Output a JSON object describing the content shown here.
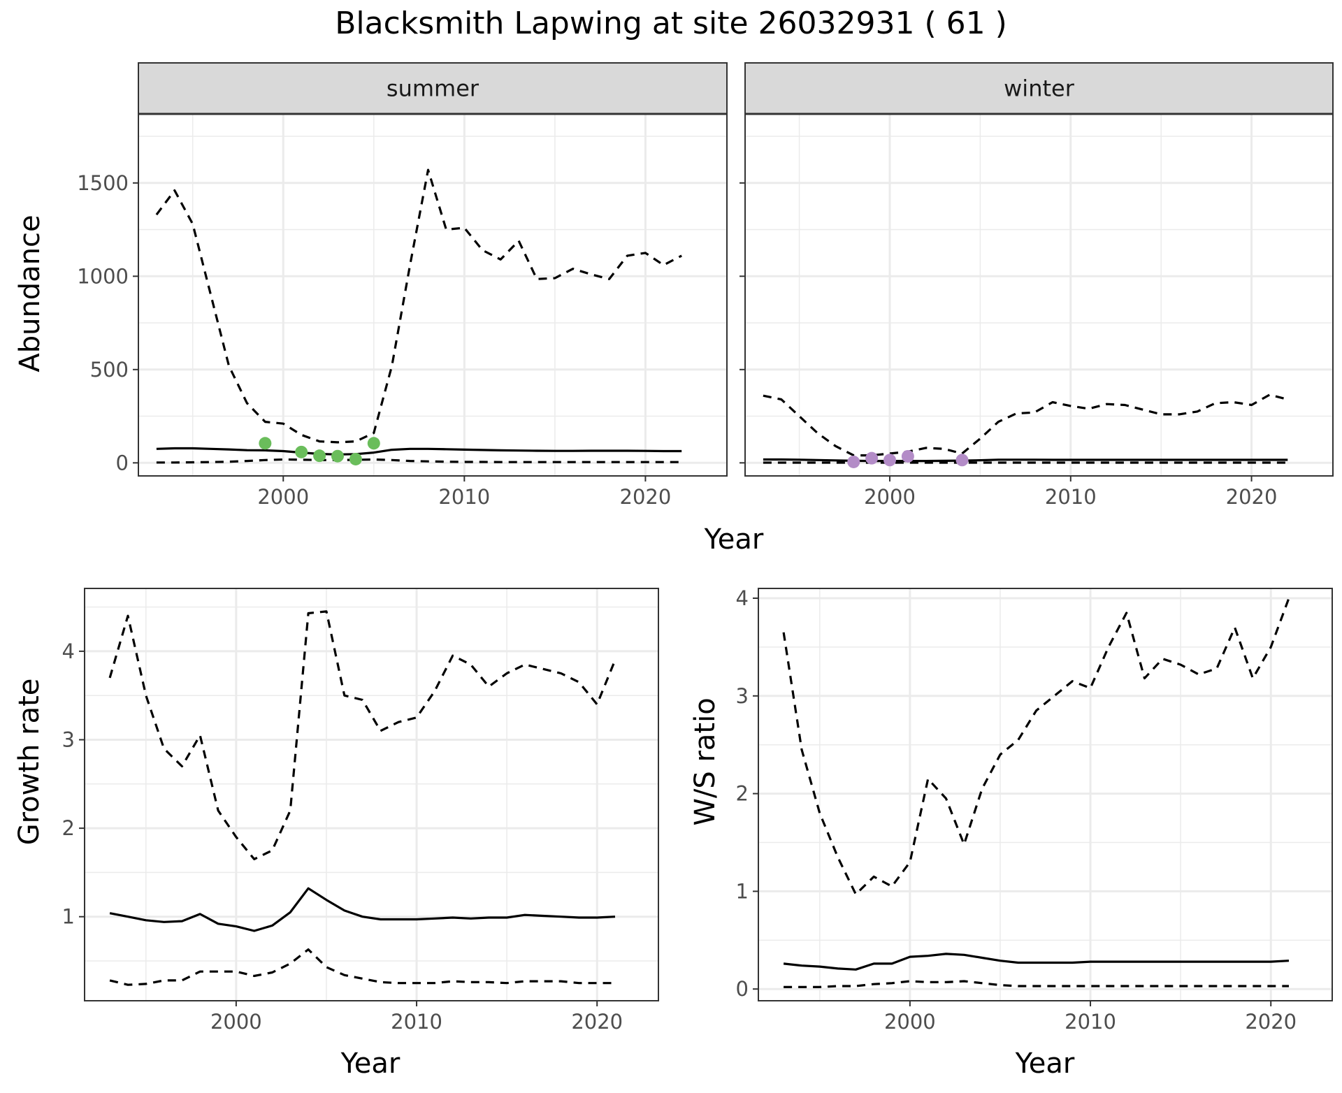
{
  "title": "Blacksmith Lapwing at site 26032931 ( 61 )",
  "colors": {
    "summer_points": "#6abd5b",
    "winter_points": "#b38cc7",
    "lines": "#000000",
    "strip": "#d9d9d9",
    "grid": "#ebebeb"
  },
  "chart_data": [
    {
      "type": "line",
      "panel": "summer",
      "strip_label": "summer",
      "ylabel": "Abundance",
      "xlabel": "Year",
      "xlim": [
        1992,
        2024.5
      ],
      "ylim": [
        -70,
        1870
      ],
      "xticks": [
        2000,
        2010,
        2020
      ],
      "yticks": [
        0,
        500,
        1000,
        1500
      ],
      "grid": true,
      "series": [
        {
          "style": "solid",
          "x": [
            1993,
            1994,
            1995,
            1996,
            1997,
            1998,
            1999,
            2000,
            2001,
            2002,
            2003,
            2004,
            2005,
            2006,
            2007,
            2008,
            2009,
            2010,
            2011,
            2012,
            2013,
            2014,
            2015,
            2016,
            2017,
            2018,
            2019,
            2020,
            2021,
            2022
          ],
          "values": [
            75,
            78,
            78,
            75,
            72,
            68,
            67,
            63,
            55,
            48,
            45,
            47,
            55,
            70,
            75,
            75,
            73,
            71,
            69,
            67,
            66,
            65,
            64,
            64,
            65,
            65,
            65,
            64,
            63,
            63
          ]
        },
        {
          "style": "dashed",
          "x": [
            1993,
            1994,
            1995,
            1996,
            1997,
            1998,
            1999,
            2000,
            2001,
            2002,
            2003,
            2004,
            2005,
            2006,
            2007,
            2008,
            2009,
            2010,
            2011,
            2012,
            2013,
            2014,
            2015,
            2016,
            2017,
            2018,
            2019,
            2020,
            2021,
            2022
          ],
          "values": [
            1330,
            1460,
            1280,
            900,
            520,
            320,
            220,
            210,
            150,
            115,
            110,
            115,
            160,
            520,
            1060,
            1570,
            1250,
            1260,
            1140,
            1090,
            1190,
            985,
            990,
            1040,
            1010,
            985,
            1110,
            1125,
            1060,
            1110
          ]
        },
        {
          "style": "dashed",
          "x": [
            1993,
            1994,
            1995,
            1996,
            1997,
            1998,
            1999,
            2000,
            2001,
            2002,
            2003,
            2004,
            2005,
            2006,
            2007,
            2008,
            2009,
            2010,
            2011,
            2012,
            2013,
            2014,
            2015,
            2016,
            2017,
            2018,
            2019,
            2020,
            2021,
            2022
          ],
          "values": [
            2,
            2,
            3,
            4,
            6,
            10,
            15,
            18,
            17,
            15,
            15,
            16,
            18,
            15,
            10,
            8,
            6,
            5,
            5,
            4,
            4,
            4,
            4,
            4,
            4,
            4,
            4,
            4,
            4,
            4
          ]
        },
        {
          "style": "points",
          "x": [
            1999,
            2001,
            2002,
            2003,
            2004,
            2005
          ],
          "values": [
            105,
            58,
            38,
            36,
            20,
            105
          ]
        }
      ]
    },
    {
      "type": "line",
      "panel": "winter",
      "strip_label": "winter",
      "xlabel": "Year",
      "xlim": [
        1992,
        2024.5
      ],
      "ylim": [
        -70,
        1870
      ],
      "xticks": [
        2000,
        2010,
        2020
      ],
      "yticks": [
        0,
        500,
        1000,
        1500
      ],
      "grid": true,
      "series": [
        {
          "style": "solid",
          "x": [
            1993,
            1994,
            1995,
            1996,
            1997,
            1998,
            1999,
            2000,
            2001,
            2002,
            2003,
            2004,
            2005,
            2006,
            2007,
            2008,
            2009,
            2010,
            2011,
            2012,
            2013,
            2014,
            2015,
            2016,
            2017,
            2018,
            2019,
            2020,
            2021,
            2022
          ],
          "values": [
            18,
            18,
            17,
            15,
            13,
            11,
            10,
            10,
            10,
            10,
            11,
            12,
            14,
            17,
            17,
            17,
            16,
            16,
            16,
            16,
            16,
            16,
            16,
            16,
            16,
            16,
            16,
            16,
            16,
            16
          ]
        },
        {
          "style": "dashed",
          "x": [
            1993,
            1994,
            1995,
            1996,
            1997,
            1998,
            1999,
            2000,
            2001,
            2002,
            2003,
            2004,
            2005,
            2006,
            2007,
            2008,
            2009,
            2010,
            2011,
            2012,
            2013,
            2014,
            2015,
            2016,
            2017,
            2018,
            2019,
            2020,
            2021,
            2022
          ],
          "values": [
            360,
            340,
            250,
            160,
            90,
            40,
            40,
            50,
            60,
            80,
            75,
            50,
            130,
            220,
            265,
            270,
            325,
            305,
            290,
            315,
            310,
            285,
            260,
            260,
            275,
            320,
            325,
            310,
            365,
            340
          ]
        },
        {
          "style": "dashed",
          "x": [
            1993,
            1994,
            1995,
            1996,
            1997,
            1998,
            1999,
            2000,
            2001,
            2002,
            2003,
            2004,
            2005,
            2006,
            2007,
            2008,
            2009,
            2010,
            2011,
            2012,
            2013,
            2014,
            2015,
            2016,
            2017,
            2018,
            2019,
            2020,
            2021,
            2022
          ],
          "values": [
            1,
            1,
            1,
            1,
            1,
            1,
            1,
            1,
            1,
            1,
            1,
            1,
            1,
            1,
            1,
            1,
            1,
            1,
            1,
            1,
            1,
            1,
            1,
            1,
            1,
            1,
            1,
            1,
            1,
            1
          ]
        },
        {
          "style": "points",
          "x": [
            1998,
            1999,
            2000,
            2001,
            2004
          ],
          "values": [
            5,
            25,
            15,
            35,
            15
          ]
        }
      ]
    },
    {
      "type": "line",
      "panel": "growth",
      "ylabel": "Growth rate",
      "xlabel": "Year",
      "xlim": [
        1991.6,
        2023.4
      ],
      "ylim": [
        0.05,
        4.71
      ],
      "xticks": [
        2000,
        2010,
        2020
      ],
      "yticks": [
        1,
        2,
        3,
        4
      ],
      "grid": true,
      "series": [
        {
          "style": "solid",
          "x": [
            1993,
            1994,
            1995,
            1996,
            1997,
            1998,
            1999,
            2000,
            2001,
            2002,
            2003,
            2004,
            2005,
            2006,
            2007,
            2008,
            2009,
            2010,
            2011,
            2012,
            2013,
            2014,
            2015,
            2016,
            2017,
            2018,
            2019,
            2020,
            2021
          ],
          "values": [
            1.04,
            1.0,
            0.96,
            0.94,
            0.95,
            1.03,
            0.92,
            0.89,
            0.84,
            0.9,
            1.05,
            1.32,
            1.19,
            1.07,
            1.0,
            0.97,
            0.97,
            0.97,
            0.98,
            0.99,
            0.98,
            0.99,
            0.99,
            1.02,
            1.01,
            1.0,
            0.99,
            0.99,
            1.0
          ]
        },
        {
          "style": "dashed",
          "x": [
            1993,
            1994,
            1995,
            1996,
            1997,
            1998,
            1999,
            2000,
            2001,
            2002,
            2003,
            2004,
            2005,
            2006,
            2007,
            2008,
            2009,
            2010,
            2011,
            2012,
            2013,
            2014,
            2015,
            2016,
            2017,
            2018,
            2019,
            2020,
            2021
          ],
          "values": [
            3.7,
            4.4,
            3.5,
            2.9,
            2.7,
            3.05,
            2.2,
            1.9,
            1.65,
            1.75,
            2.2,
            4.43,
            4.45,
            3.5,
            3.45,
            3.1,
            3.2,
            3.25,
            3.55,
            3.95,
            3.85,
            3.6,
            3.75,
            3.85,
            3.8,
            3.75,
            3.65,
            3.4,
            3.9
          ]
        },
        {
          "style": "dashed",
          "x": [
            1993,
            1994,
            1995,
            1996,
            1997,
            1998,
            1999,
            2000,
            2001,
            2002,
            2003,
            2004,
            2005,
            2006,
            2007,
            2008,
            2009,
            2010,
            2011,
            2012,
            2013,
            2014,
            2015,
            2016,
            2017,
            2018,
            2019,
            2020,
            2021
          ],
          "values": [
            0.28,
            0.23,
            0.24,
            0.28,
            0.28,
            0.38,
            0.38,
            0.38,
            0.33,
            0.37,
            0.47,
            0.63,
            0.43,
            0.34,
            0.3,
            0.26,
            0.25,
            0.25,
            0.25,
            0.27,
            0.26,
            0.26,
            0.25,
            0.27,
            0.27,
            0.27,
            0.25,
            0.25,
            0.25
          ]
        }
      ]
    },
    {
      "type": "line",
      "panel": "ratio",
      "ylabel": "W/S ratio",
      "xlabel": "Year",
      "xlim": [
        1991.6,
        2023.4
      ],
      "ylim": [
        -0.12,
        4.1
      ],
      "xticks": [
        2000,
        2010,
        2020
      ],
      "yticks": [
        0,
        1,
        2,
        3,
        4
      ],
      "grid": true,
      "series": [
        {
          "style": "solid",
          "x": [
            1993,
            1994,
            1995,
            1996,
            1997,
            1998,
            1999,
            2000,
            2001,
            2002,
            2003,
            2004,
            2005,
            2006,
            2007,
            2008,
            2009,
            2010,
            2011,
            2012,
            2013,
            2014,
            2015,
            2016,
            2017,
            2018,
            2019,
            2020,
            2021
          ],
          "values": [
            0.26,
            0.24,
            0.23,
            0.21,
            0.2,
            0.26,
            0.26,
            0.33,
            0.34,
            0.36,
            0.35,
            0.32,
            0.29,
            0.27,
            0.27,
            0.27,
            0.27,
            0.28,
            0.28,
            0.28,
            0.28,
            0.28,
            0.28,
            0.28,
            0.28,
            0.28,
            0.28,
            0.28,
            0.29
          ]
        },
        {
          "style": "dashed",
          "x": [
            1993,
            1994,
            1995,
            1996,
            1997,
            1998,
            1999,
            2000,
            2001,
            2002,
            2003,
            2004,
            2005,
            2006,
            2007,
            2008,
            2009,
            2010,
            2011,
            2012,
            2013,
            2014,
            2015,
            2016,
            2017,
            2018,
            2019,
            2020,
            2021
          ],
          "values": [
            3.65,
            2.45,
            1.8,
            1.35,
            0.97,
            1.15,
            1.05,
            1.3,
            2.15,
            1.95,
            1.48,
            2.05,
            2.4,
            2.55,
            2.85,
            3.0,
            3.15,
            3.08,
            3.5,
            3.85,
            3.18,
            3.38,
            3.32,
            3.22,
            3.28,
            3.7,
            3.18,
            3.5,
            4.0
          ]
        },
        {
          "style": "dashed",
          "x": [
            1993,
            1994,
            1995,
            1996,
            1997,
            1998,
            1999,
            2000,
            2001,
            2002,
            2003,
            2004,
            2005,
            2006,
            2007,
            2008,
            2009,
            2010,
            2011,
            2012,
            2013,
            2014,
            2015,
            2016,
            2017,
            2018,
            2019,
            2020,
            2021
          ],
          "values": [
            0.02,
            0.02,
            0.02,
            0.03,
            0.03,
            0.05,
            0.06,
            0.08,
            0.07,
            0.07,
            0.08,
            0.06,
            0.04,
            0.03,
            0.03,
            0.03,
            0.03,
            0.03,
            0.03,
            0.03,
            0.03,
            0.03,
            0.03,
            0.03,
            0.03,
            0.03,
            0.03,
            0.03,
            0.03
          ]
        }
      ]
    }
  ]
}
